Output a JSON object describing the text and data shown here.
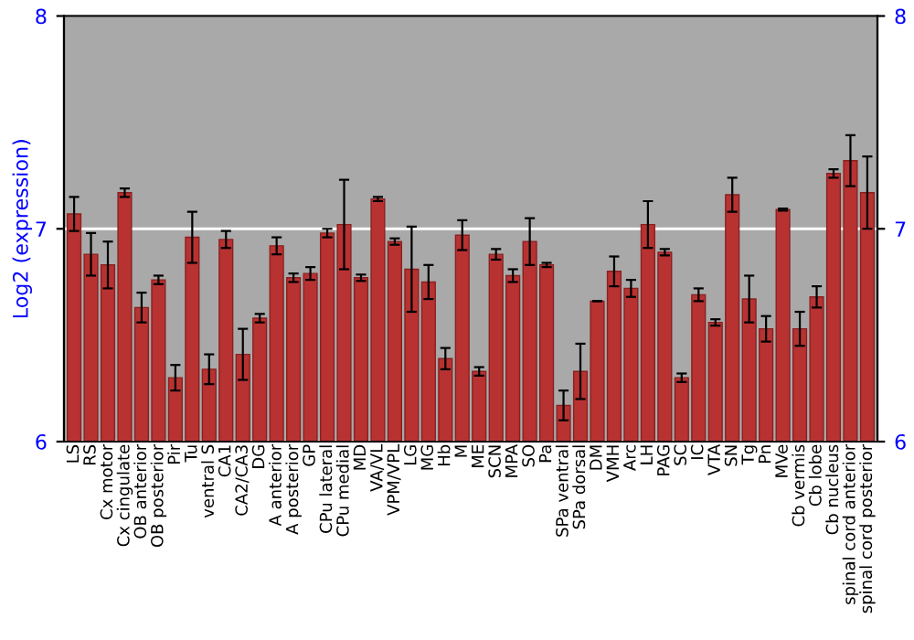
{
  "chart_data": {
    "type": "bar",
    "ylabel": "Log2 (expression)",
    "categories": [
      "LS",
      "RS",
      "Cx motor",
      "Cx cingulate",
      "OB anterior",
      "OB posterior",
      "Pir",
      "Tu",
      "ventral S",
      "CA1",
      "CA2/CA3",
      "DG",
      "A anterior",
      "A posterior",
      "GP",
      "CPu lateral",
      "CPu medial",
      "MD",
      "VA/VL",
      "VPM/VPL",
      "LG",
      "MG",
      "Hb",
      "M",
      "ME",
      "SCN",
      "MPA",
      "SO",
      "Pa",
      "SPa ventral",
      "SPa dorsal",
      "DM",
      "VMH",
      "Arc",
      "LH",
      "PAG",
      "SC",
      "IC",
      "VTA",
      "SN",
      "Tg",
      "Pn",
      "MVe",
      "Cb vermis",
      "Cb lobe",
      "Cb nucleus",
      "spinal cord anterior",
      "spinal cord posterior"
    ],
    "values": [
      7.07,
      6.88,
      6.83,
      7.17,
      6.63,
      6.76,
      6.3,
      6.96,
      6.34,
      6.95,
      6.41,
      6.58,
      6.92,
      6.77,
      6.79,
      6.98,
      7.02,
      6.77,
      7.14,
      6.94,
      6.81,
      6.75,
      6.39,
      6.97,
      6.33,
      6.88,
      6.78,
      6.94,
      6.83,
      6.17,
      6.33,
      6.66,
      6.8,
      6.72,
      7.02,
      6.89,
      6.3,
      6.69,
      6.56,
      7.16,
      6.67,
      6.53,
      7.09,
      6.53,
      6.68,
      7.26,
      7.32,
      7.17
    ],
    "errors": [
      0.08,
      0.1,
      0.11,
      0.02,
      0.07,
      0.02,
      0.06,
      0.12,
      0.07,
      0.04,
      0.12,
      0.02,
      0.04,
      0.02,
      0.03,
      0.02,
      0.21,
      0.015,
      0.01,
      0.015,
      0.2,
      0.08,
      0.05,
      0.07,
      0.02,
      0.025,
      0.03,
      0.11,
      0.01,
      0.07,
      0.13,
      0,
      0.07,
      0.04,
      0.11,
      0.015,
      0.02,
      0.03,
      0.015,
      0.08,
      0.11,
      0.06,
      0.005,
      0.08,
      0.05,
      0.02,
      0.12,
      0.17
    ],
    "color": "#b83232",
    "ylim": [
      6,
      8
    ],
    "yticks": [
      6,
      7,
      8
    ],
    "y2lim": [
      6,
      8
    ],
    "y2ticks": [
      6,
      7,
      8
    ],
    "grid": "y"
  }
}
